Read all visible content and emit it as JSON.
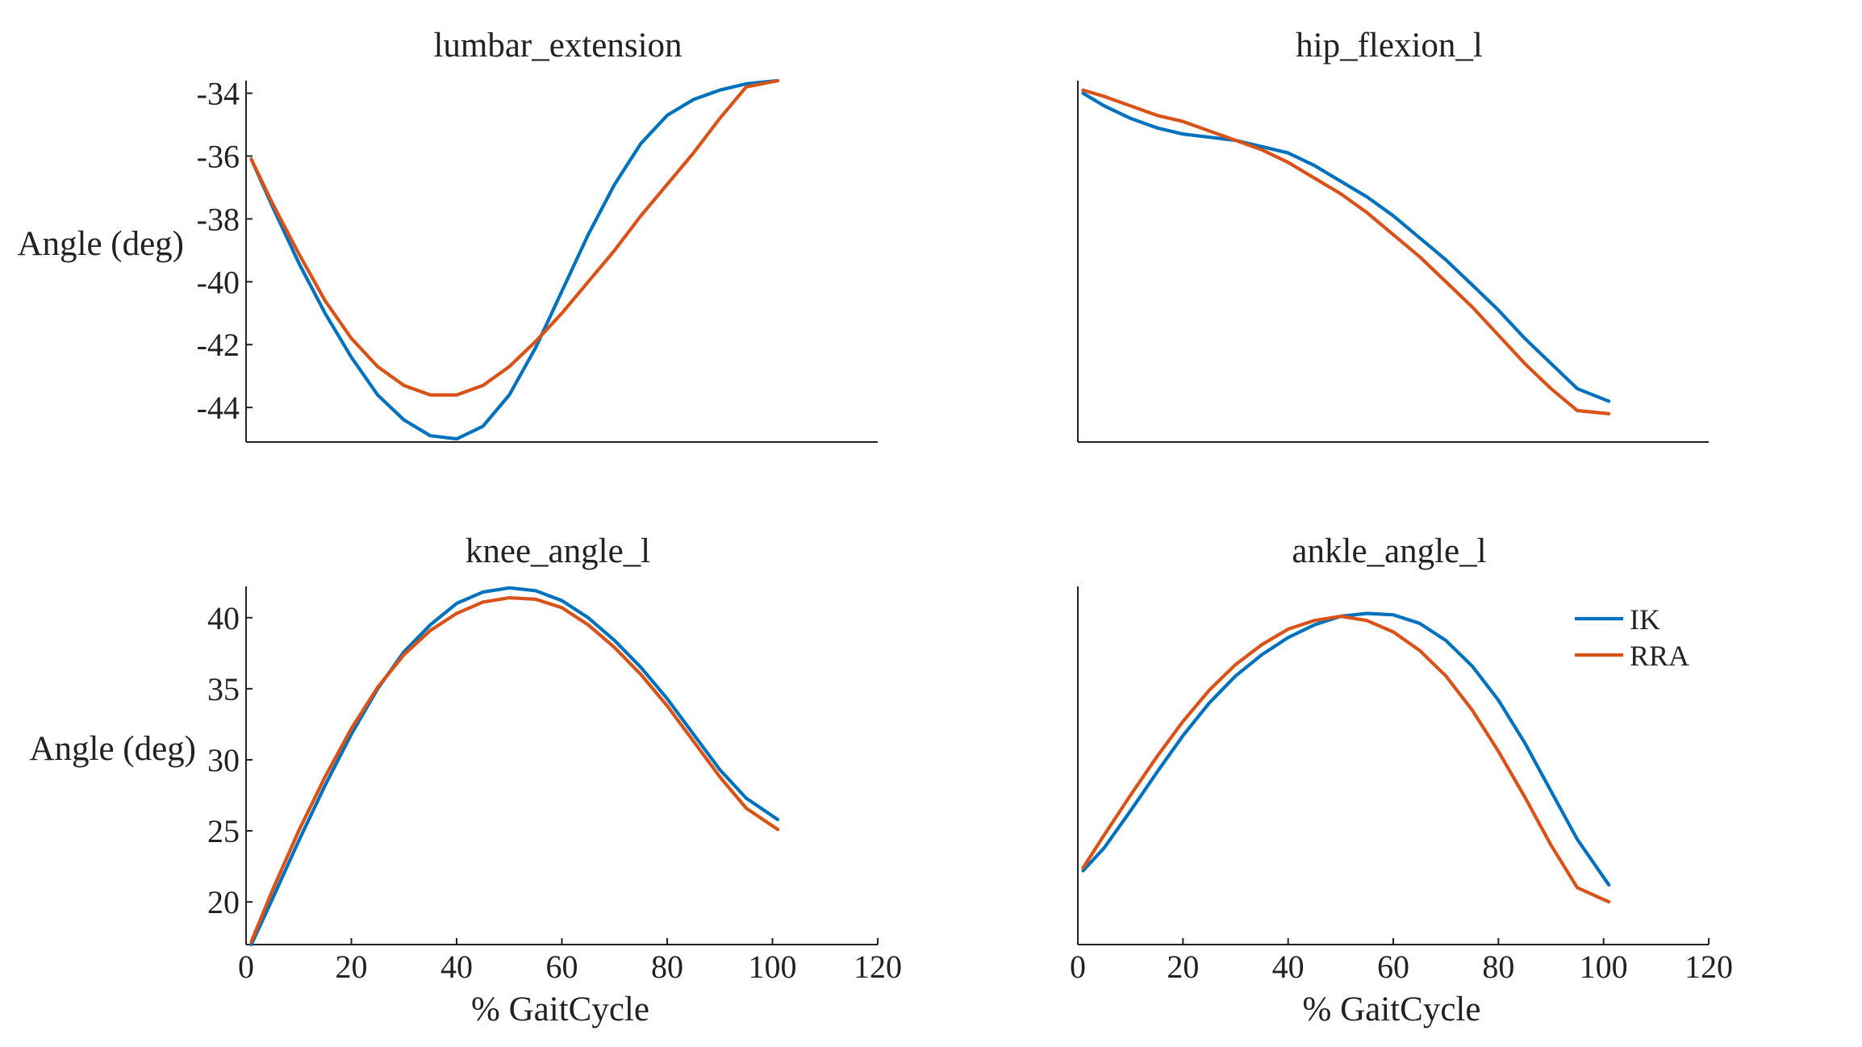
{
  "colors": {
    "ik": "#0072BD",
    "rra": "#D95319",
    "axis": "#222222",
    "background": "#ffffff"
  },
  "legend": {
    "placement": "top-right of ankle_angle_l panel",
    "entries": [
      {
        "label": "IK",
        "color": "#0072BD"
      },
      {
        "label": "RRA",
        "color": "#D95319"
      }
    ]
  },
  "chart_data": [
    {
      "type": "line",
      "title": "lumbar_extension",
      "xlabel": "",
      "ylabel": "Angle (deg)",
      "xlim": [
        0,
        120
      ],
      "ylim": [
        -45.1,
        -33.6
      ],
      "xticks": [],
      "yticks": [
        -34,
        -36,
        -38,
        -40,
        -42,
        -44
      ],
      "grid": false,
      "series": [
        {
          "name": "IK",
          "color": "#0072BD",
          "x": [
            1,
            5,
            10,
            15,
            20,
            25,
            30,
            35,
            40,
            45,
            50,
            55,
            60,
            65,
            70,
            75,
            80,
            85,
            90,
            95,
            101
          ],
          "y": [
            -36.1,
            -37.6,
            -39.4,
            -41.0,
            -42.4,
            -43.6,
            -44.4,
            -44.9,
            -45.0,
            -44.6,
            -43.6,
            -42.1,
            -40.3,
            -38.5,
            -36.9,
            -35.6,
            -34.7,
            -34.2,
            -33.9,
            -33.7,
            -33.6
          ]
        },
        {
          "name": "RRA",
          "color": "#D95319",
          "x": [
            1,
            5,
            10,
            15,
            20,
            25,
            30,
            35,
            40,
            45,
            50,
            55,
            60,
            65,
            70,
            75,
            80,
            85,
            90,
            95,
            101
          ],
          "y": [
            -36.1,
            -37.5,
            -39.1,
            -40.6,
            -41.8,
            -42.7,
            -43.3,
            -43.6,
            -43.6,
            -43.3,
            -42.7,
            -41.9,
            -41.0,
            -40.0,
            -39.0,
            -37.9,
            -36.9,
            -35.9,
            -34.8,
            -33.8,
            -33.6
          ]
        }
      ]
    },
    {
      "type": "line",
      "title": "hip_flexion_l",
      "xlabel": "",
      "ylabel": "",
      "xlim": [
        0,
        120
      ],
      "ylim": [
        -45.1,
        -33.6
      ],
      "xticks": [],
      "yticks": [],
      "grid": false,
      "series": [
        {
          "name": "IK",
          "color": "#0072BD",
          "x": [
            1,
            5,
            10,
            15,
            20,
            25,
            30,
            35,
            40,
            45,
            50,
            55,
            60,
            65,
            70,
            75,
            80,
            85,
            90,
            95,
            101
          ],
          "y": [
            -34.0,
            -34.4,
            -34.8,
            -35.1,
            -35.3,
            -35.4,
            -35.5,
            -35.7,
            -35.9,
            -36.3,
            -36.8,
            -37.3,
            -37.9,
            -38.6,
            -39.3,
            -40.1,
            -40.9,
            -41.8,
            -42.6,
            -43.4,
            -43.8
          ]
        },
        {
          "name": "RRA",
          "color": "#D95319",
          "x": [
            1,
            5,
            10,
            15,
            20,
            25,
            30,
            35,
            40,
            45,
            50,
            55,
            60,
            65,
            70,
            75,
            80,
            85,
            90,
            95,
            101
          ],
          "y": [
            -33.9,
            -34.1,
            -34.4,
            -34.7,
            -34.9,
            -35.2,
            -35.5,
            -35.8,
            -36.2,
            -36.7,
            -37.2,
            -37.8,
            -38.5,
            -39.2,
            -40.0,
            -40.8,
            -41.7,
            -42.6,
            -43.4,
            -44.1,
            -44.2
          ]
        }
      ]
    },
    {
      "type": "line",
      "title": "knee_angle_l",
      "xlabel": "% GaitCycle",
      "ylabel": "Angle (deg)",
      "xlim": [
        0,
        120
      ],
      "ylim": [
        17,
        42.2
      ],
      "xticks": [
        0,
        20,
        40,
        60,
        80,
        100,
        120
      ],
      "yticks": [
        20,
        25,
        30,
        35,
        40
      ],
      "grid": false,
      "series": [
        {
          "name": "IK",
          "color": "#0072BD",
          "x": [
            1,
            5,
            10,
            15,
            20,
            25,
            30,
            35,
            40,
            45,
            50,
            55,
            60,
            65,
            70,
            75,
            80,
            85,
            90,
            95,
            101
          ],
          "y": [
            17.0,
            20.2,
            24.3,
            28.2,
            31.8,
            35.0,
            37.6,
            39.5,
            41.0,
            41.8,
            42.1,
            41.9,
            41.2,
            40.0,
            38.4,
            36.5,
            34.3,
            31.8,
            29.3,
            27.3,
            25.8
          ]
        },
        {
          "name": "RRA",
          "color": "#D95319",
          "x": [
            1,
            5,
            10,
            15,
            20,
            25,
            30,
            35,
            40,
            45,
            50,
            55,
            60,
            65,
            70,
            75,
            80,
            85,
            90,
            95,
            101
          ],
          "y": [
            17.2,
            20.8,
            25.0,
            28.8,
            32.2,
            35.1,
            37.4,
            39.1,
            40.3,
            41.1,
            41.4,
            41.3,
            40.7,
            39.5,
            37.9,
            36.0,
            33.8,
            31.3,
            28.8,
            26.6,
            25.1
          ]
        }
      ]
    },
    {
      "type": "line",
      "title": "ankle_angle_l",
      "xlabel": "% GaitCycle",
      "ylabel": "",
      "xlim": [
        0,
        120
      ],
      "ylim": [
        17,
        42.2
      ],
      "xticks": [
        0,
        20,
        40,
        60,
        80,
        100,
        120
      ],
      "yticks": [],
      "grid": false,
      "series": [
        {
          "name": "IK",
          "color": "#0072BD",
          "x": [
            1,
            5,
            10,
            15,
            20,
            25,
            30,
            35,
            40,
            45,
            50,
            55,
            60,
            65,
            70,
            75,
            80,
            85,
            90,
            95,
            101
          ],
          "y": [
            22.2,
            23.8,
            26.4,
            29.1,
            31.7,
            34.0,
            35.9,
            37.4,
            38.6,
            39.5,
            40.1,
            40.3,
            40.2,
            39.6,
            38.4,
            36.6,
            34.2,
            31.2,
            27.8,
            24.4,
            21.2
          ]
        },
        {
          "name": "RRA",
          "color": "#D95319",
          "x": [
            1,
            5,
            10,
            15,
            20,
            25,
            30,
            35,
            40,
            45,
            50,
            55,
            60,
            65,
            70,
            75,
            80,
            85,
            90,
            95,
            101
          ],
          "y": [
            22.4,
            24.7,
            27.5,
            30.2,
            32.7,
            34.9,
            36.7,
            38.1,
            39.2,
            39.8,
            40.1,
            39.8,
            39.0,
            37.7,
            35.9,
            33.5,
            30.6,
            27.4,
            24.0,
            21.0,
            20.0
          ]
        }
      ]
    }
  ]
}
